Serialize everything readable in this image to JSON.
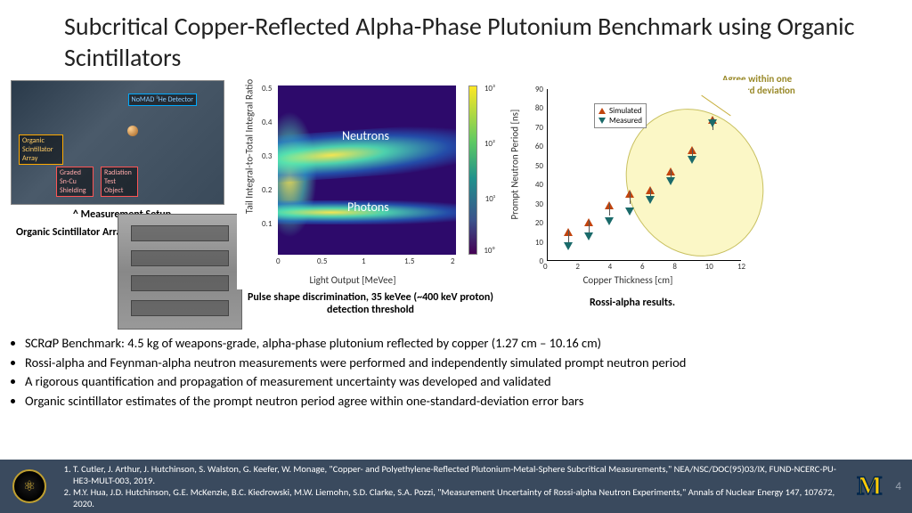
{
  "title": "Subcritical Copper-Reflected Alpha-Phase Plutonium Benchmark using Organic Scintillators",
  "photo_labels": {
    "nomad": "NoMAD ³He Detector",
    "organic": "Organic Scintillator Array",
    "shield": "Graded Sn-Cu Shielding",
    "rto": "Radiation Test Object"
  },
  "captions": {
    "setup": "^ Measurement Setup",
    "oscar": "Organic Scintillator Array OSCAR →",
    "psd": "Pulse shape discrimination, 35 keVee (~400 keV proton) detection threshold",
    "rossi": "Rossi-alpha results.",
    "agree": "Agree within one standard deviation"
  },
  "psd": {
    "type": "heatmap",
    "xlabel": "Light Output [MeVee]",
    "ylabel": "Tail Integral-to-Total Integral Ratio",
    "xlim": [
      0,
      2
    ],
    "xticks": [
      0,
      0.5,
      1,
      1.5,
      2
    ],
    "ylim": [
      0,
      0.5
    ],
    "yticks": [
      0.1,
      0.2,
      0.3,
      0.4,
      0.5
    ],
    "band_labels": {
      "neutrons": "Neutrons",
      "photons": "Photons"
    },
    "colorbar": {
      "scale": "log",
      "ticks": [
        "10⁰",
        "10¹",
        "10²",
        "10³"
      ]
    },
    "colormap": [
      "#440154",
      "#3b528b",
      "#21918c",
      "#5ec962",
      "#fde725"
    ]
  },
  "rossi": {
    "type": "scatter",
    "xlabel": "Copper Thickness [cm]",
    "ylabel": "Prompt Neutron Period [ns]",
    "xlim": [
      0,
      12
    ],
    "xticks": [
      0,
      2,
      4,
      6,
      8,
      10,
      12
    ],
    "ylim": [
      0,
      90
    ],
    "yticks": [
      0,
      10,
      20,
      30,
      40,
      50,
      60,
      70,
      80,
      90
    ],
    "legend": {
      "sim": "Simulated",
      "meas": "Measured"
    },
    "colors": {
      "sim": "#c1440e",
      "meas": "#1a6a6a"
    },
    "sim_points": [
      [
        1.27,
        13
      ],
      [
        2.54,
        18
      ],
      [
        3.81,
        27
      ],
      [
        5.08,
        33
      ],
      [
        6.35,
        35
      ],
      [
        7.62,
        45
      ],
      [
        8.89,
        56
      ],
      [
        10.16,
        72
      ]
    ],
    "meas_points": [
      [
        1.27,
        10
      ],
      [
        2.54,
        15
      ],
      [
        3.81,
        23
      ],
      [
        5.08,
        28
      ],
      [
        6.35,
        34
      ],
      [
        7.62,
        44
      ],
      [
        8.89,
        55
      ],
      [
        10.16,
        74
      ]
    ],
    "ellipse_covers_from_index": 2
  },
  "bullets": [
    "SCR𝛼P Benchmark: 4.5 kg of weapons-grade, alpha-phase plutonium reflected by copper (1.27 cm – 10.16 cm)",
    "Rossi-alpha and Feynman-alpha neutron measurements were performed and independently simulated prompt neutron period",
    "A rigorous quantification and propagation of measurement uncertainty was developed and validated",
    "Organic scintillator estimates of the prompt neutron period agree within one-standard-deviation error bars"
  ],
  "refs": [
    "T. Cutler, J. Arthur, J. Hutchinson, S. Walston, G. Keefer, W. Monage, \"Copper- and Polyethylene-Reflected Plutonium-Metal-Sphere Subcritical Measurements,\" NEA/NSC/DOC(95)03/IX, FUND-NCERC-PU-HE3-MULT-003, 2019.",
    "M.Y. Hua, J.D. Hutchinson, G.E. McKenzie, B.C. Kiedrowski, M.W. Liemohn, S.D. Clarke, S.A. Pozzi, \"Measurement Uncertainty of Rossi-alpha Neutron Experiments,\" Annals of Nuclear Energy 147, 107672, 2020."
  ],
  "page_number": "4"
}
